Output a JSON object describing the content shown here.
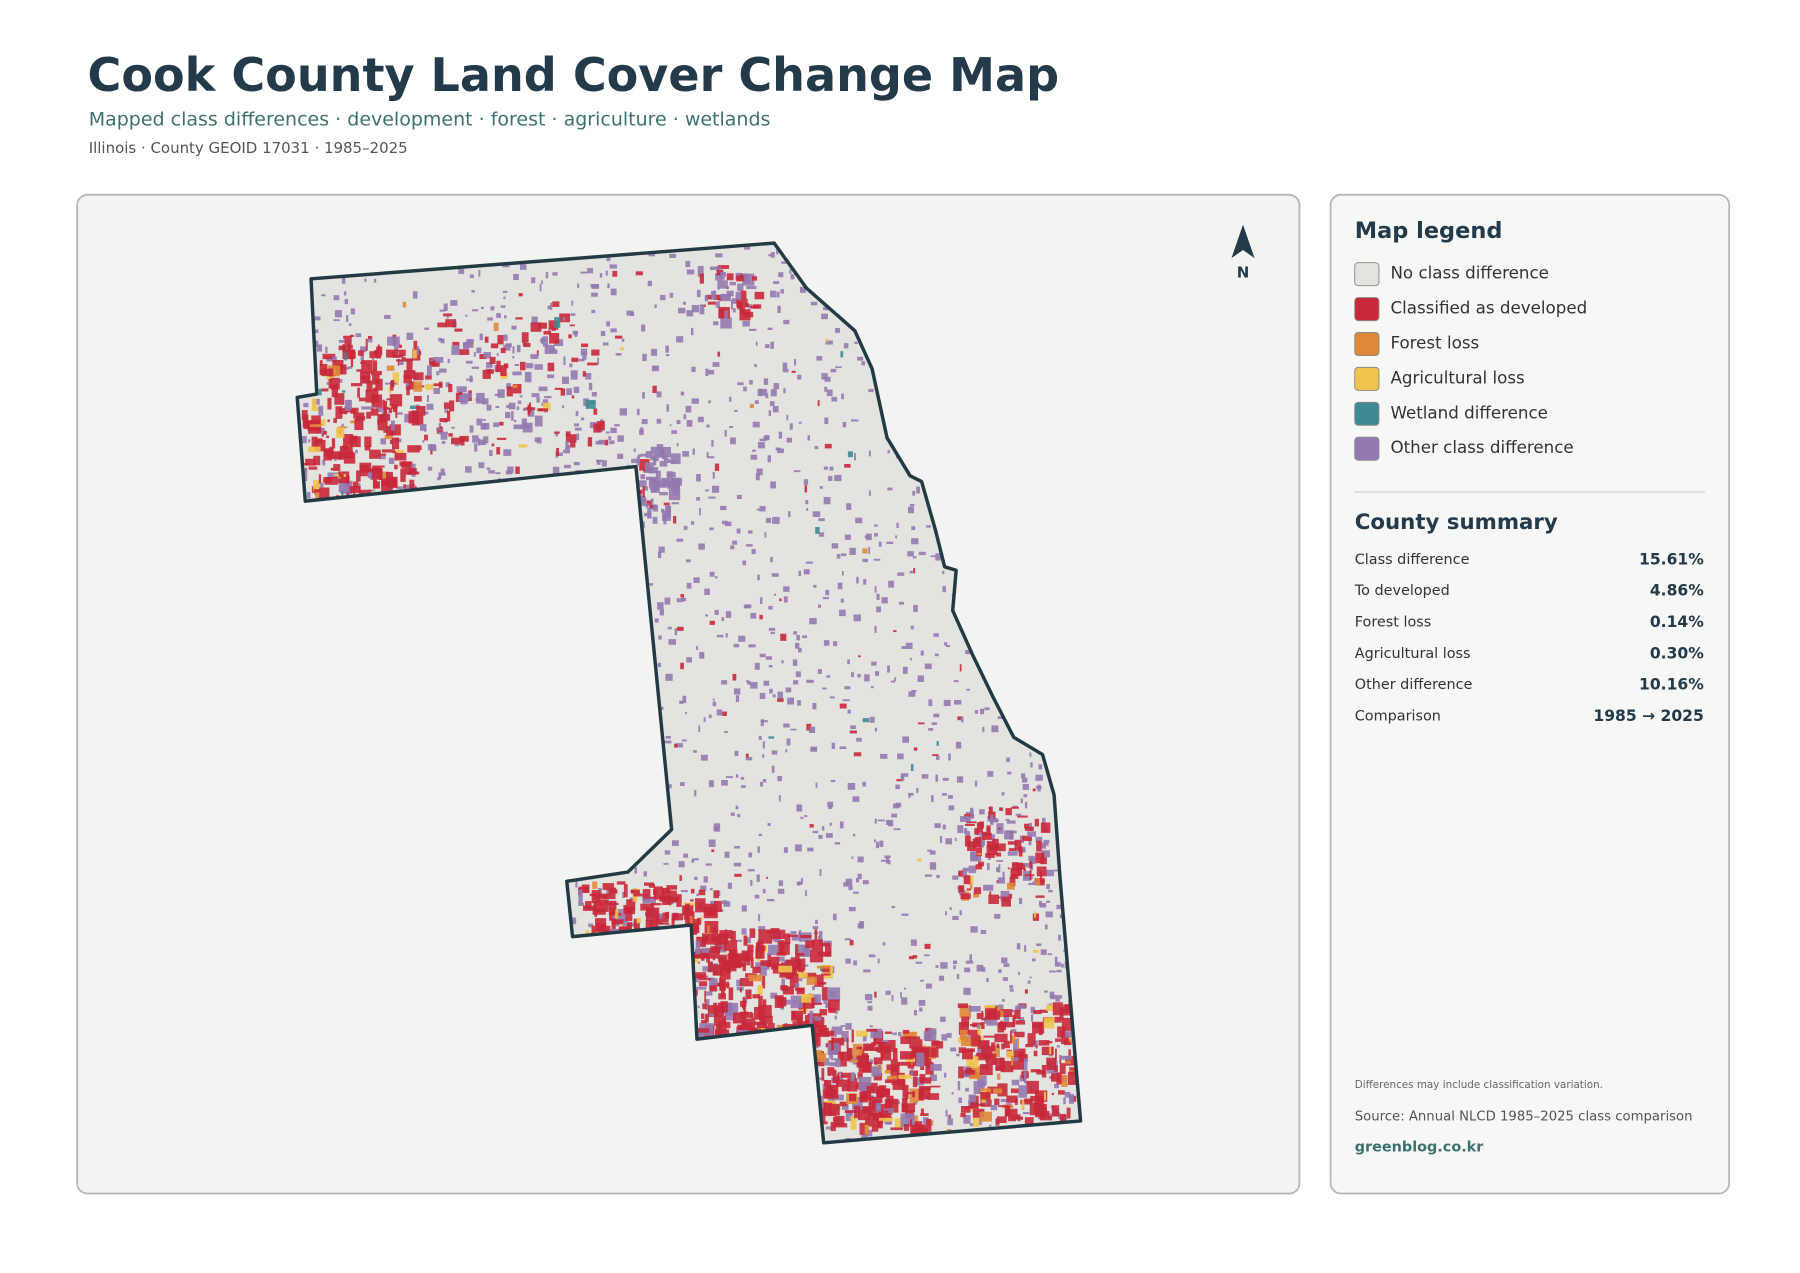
{
  "header": {
    "title": "Cook County Land Cover Change Map",
    "subtitle": "Mapped class differences · development · forest · agriculture · wetlands",
    "meta": "Illinois · County GEOID 17031 · 1985–2025"
  },
  "map": {
    "north": "N"
  },
  "legend": {
    "title": "Map legend",
    "items": [
      {
        "label": "No class difference",
        "color": "#e3e3e0"
      },
      {
        "label": "Classified as developed",
        "color": "#c8283a"
      },
      {
        "label": "Forest loss",
        "color": "#e0883a"
      },
      {
        "label": "Agricultural loss",
        "color": "#f0c44c"
      },
      {
        "label": "Wetland difference",
        "color": "#3e8a94"
      },
      {
        "label": "Other class difference",
        "color": "#9479b0"
      }
    ]
  },
  "summary": {
    "title": "County summary",
    "rows": [
      [
        "Class difference",
        "15.61%"
      ],
      [
        "To developed",
        "4.86%"
      ],
      [
        "Forest loss",
        "0.14%"
      ],
      [
        "Agricultural loss",
        "0.30%"
      ],
      [
        "Other difference",
        "10.16%"
      ],
      [
        "Comparison",
        "1985 → 2025"
      ]
    ]
  },
  "notes": {
    "caveat": "Differences may include classification variation.",
    "source": "Source: Annual NLCD 1985–2025 class comparison",
    "credit": "greenblog.co.kr"
  }
}
